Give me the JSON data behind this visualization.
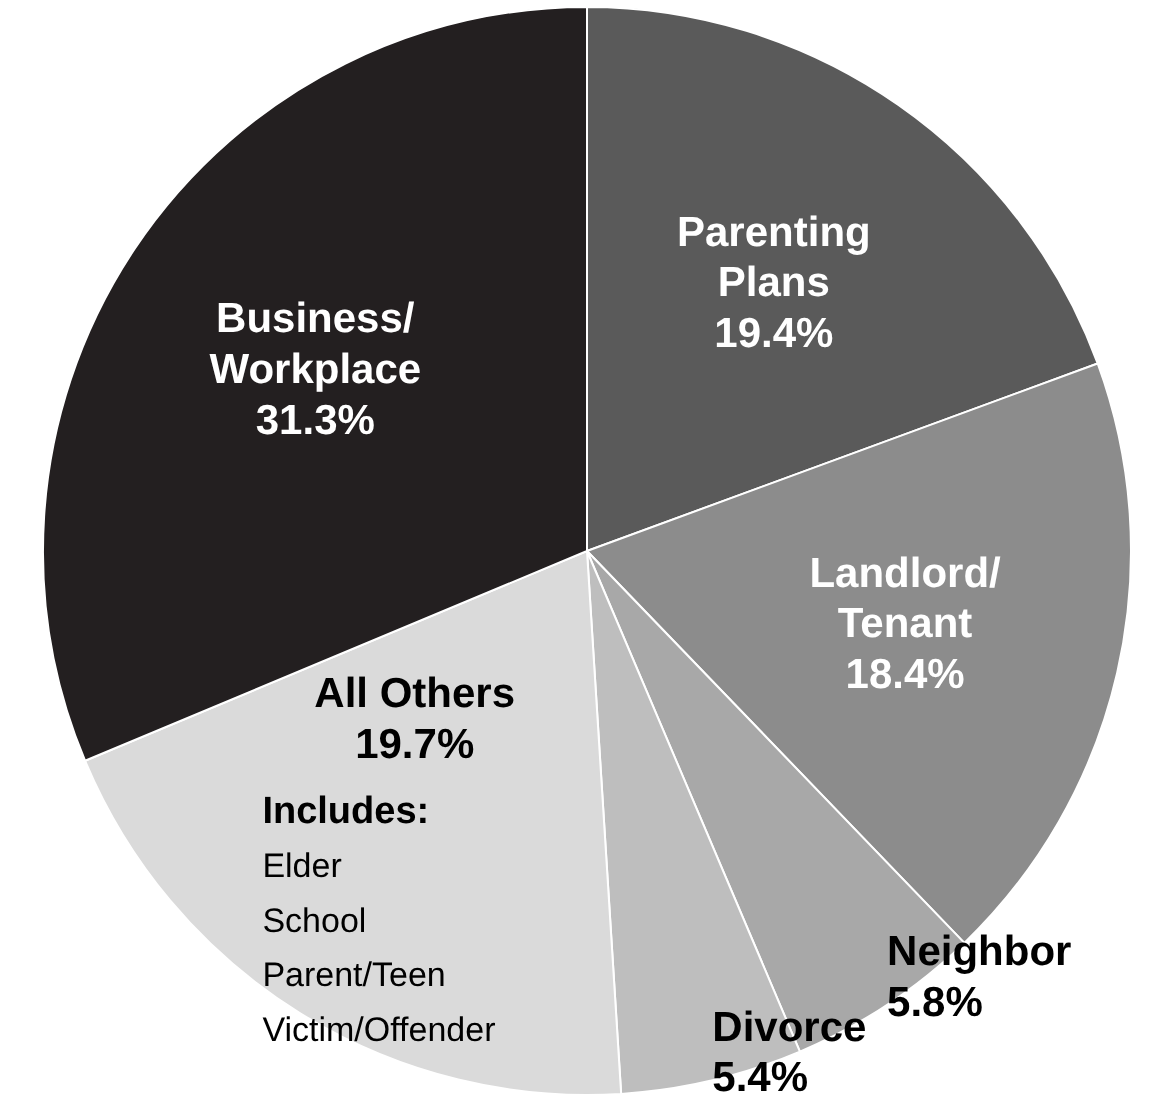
{
  "chart_data": {
    "type": "pie",
    "categories": [
      "Parenting\nPlans",
      "Landlord/\nTenant",
      "Neighbor",
      "Divorce",
      "All Others",
      "Business/\nWorkplace"
    ],
    "values": [
      19.4,
      18.4,
      5.8,
      5.4,
      19.7,
      31.3
    ],
    "value_labels": [
      "19.4%",
      "18.4%",
      "5.8%",
      "5.4%",
      "19.7%",
      "31.3%"
    ],
    "colors": [
      "#5a5a5a",
      "#8c8c8c",
      "#a8a8a8",
      "#bebebe",
      "#dadada",
      "#231f20"
    ],
    "annotations": [
      "Includes:",
      "Elder",
      "School",
      "Parent/Teen",
      "Victim/Offender"
    ]
  }
}
